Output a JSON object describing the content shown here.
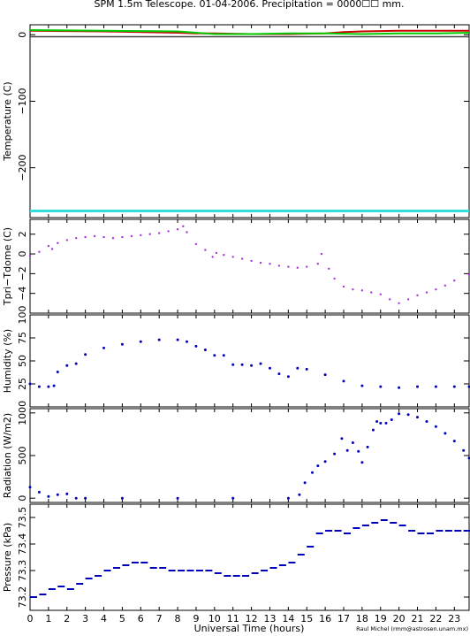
{
  "title": "SPM 1.5m Telescope. 01-04-2006. Precipitation = 0000☐☐ mm.",
  "xlabel": "Universal Time (hours)",
  "credit": "Raul Michel (rmm@astrosen.unam.mx)",
  "x_ticks": [
    "0",
    "1",
    "2",
    "3",
    "4",
    "5",
    "6",
    "7",
    "8",
    "9",
    "10",
    "11",
    "12",
    "13",
    "14",
    "15",
    "16",
    "17",
    "18",
    "19",
    "20",
    "21",
    "22",
    "23"
  ],
  "colors": {
    "temp_red": "#cc0000",
    "temp_green": "#00cc00",
    "temp_dark": "#444444",
    "temp_cyan": "#33dddd",
    "tpri": "#aa33dd",
    "blue": "#0000bb"
  },
  "chart_data": [
    {
      "type": "line",
      "ylabel": "Temperature (C)",
      "y_ticks": [
        "0",
        "−100",
        "−200"
      ],
      "ylim": [
        -275,
        15
      ],
      "series": [
        {
          "x": [
            0,
            2,
            4,
            6,
            8,
            9,
            10,
            12,
            14,
            16,
            17,
            18,
            20,
            22,
            23.8
          ],
          "y": [
            6,
            5.5,
            5,
            4,
            3,
            2,
            2,
            1,
            1,
            2,
            4,
            5,
            6,
            6,
            6
          ]
        },
        {
          "x": [
            0,
            2,
            4,
            6,
            8,
            9,
            10,
            12,
            14,
            16,
            18,
            20,
            22,
            23.8
          ],
          "y": [
            7,
            6.5,
            6,
            5.5,
            5,
            3,
            1,
            1,
            2,
            2,
            1,
            2,
            2,
            3
          ]
        },
        {
          "x": [
            0,
            23.8
          ],
          "y": [
            -3,
            -3
          ]
        },
        {
          "x": [
            0,
            23.8
          ],
          "y": [
            -265,
            -265
          ]
        }
      ]
    },
    {
      "type": "scatter",
      "ylabel": "Tpri−Tdome (C)",
      "y_ticks": [
        "2",
        "0",
        "−2",
        "−4"
      ],
      "ylim": [
        -6,
        3.5
      ],
      "series": [
        {
          "x": [
            0,
            0.5,
            1,
            1.2,
            1.5,
            2,
            2.5,
            3,
            3.5,
            4,
            4.5,
            5,
            5.5,
            6,
            6.5,
            7,
            7.5,
            8,
            8.3,
            8.5,
            9,
            9.5,
            9.9,
            10.1,
            10.5,
            11,
            11.5,
            12,
            12.5,
            13,
            13.5,
            14,
            14.5,
            15,
            15.6,
            15.8,
            16.2,
            16.5,
            17,
            17.5,
            18,
            18.5,
            19,
            19.5,
            20,
            20.5,
            21,
            21.5,
            22,
            22.5,
            23,
            23.8
          ],
          "y": [
            -0.2,
            0.2,
            0.8,
            0.5,
            1.1,
            1.4,
            1.6,
            1.7,
            1.8,
            1.7,
            1.6,
            1.7,
            1.8,
            1.9,
            2.0,
            2.1,
            2.3,
            2.5,
            2.8,
            2.2,
            1.0,
            0.4,
            -0.3,
            0.1,
            -0.1,
            -0.3,
            -0.5,
            -0.7,
            -0.9,
            -1.0,
            -1.2,
            -1.3,
            -1.4,
            -1.3,
            -1.0,
            0.0,
            -1.5,
            -2.5,
            -3.3,
            -3.6,
            -3.7,
            -3.9,
            -4.1,
            -4.6,
            -5.0,
            -4.6,
            -4.2,
            -3.9,
            -3.6,
            -3.2,
            -2.7,
            -2.1
          ]
        }
      ]
    },
    {
      "type": "scatter",
      "ylabel": "Humidity (%)",
      "y_ticks": [
        "25",
        "50",
        "75",
        "100"
      ],
      "ylim": [
        0,
        100
      ],
      "series": [
        {
          "x": [
            0,
            0.5,
            1.0,
            1.3,
            1.5,
            2.0,
            2.5,
            3.0,
            4.0,
            5.0,
            6.0,
            7.0,
            8.0,
            8.5,
            9.0,
            9.5,
            10.0,
            10.5,
            11.0,
            11.5,
            12.0,
            12.5,
            13.0,
            13.5,
            14.0,
            14.5,
            15.0,
            16.0,
            17.0,
            18.0,
            19.0,
            20.0,
            21.0,
            22.0,
            23.0,
            23.8
          ],
          "y": [
            25,
            22,
            22,
            23,
            38,
            45,
            47,
            57,
            64,
            68,
            71,
            73,
            73,
            71,
            66,
            62,
            56,
            56,
            46,
            46,
            45,
            47,
            42,
            36,
            33,
            42,
            41,
            35,
            28,
            23,
            22,
            21,
            22,
            22,
            22,
            22
          ]
        }
      ]
    },
    {
      "type": "scatter",
      "ylabel": "Radiation (W/m2)",
      "y_ticks": [
        "0",
        "500",
        "1000"
      ],
      "ylim": [
        -50,
        1050
      ],
      "series": [
        {
          "x": [
            0,
            0.5,
            1.0,
            1.5,
            2.0,
            2.5,
            3.0,
            5.0,
            8.0,
            11.0,
            14.0,
            14.6,
            14.9,
            15.3,
            15.6,
            16.0,
            16.5,
            16.9,
            17.2,
            17.5,
            17.8,
            18.0,
            18.3,
            18.6,
            18.8,
            19.0,
            19.3,
            19.6,
            20.0,
            20.5,
            21.0,
            21.5,
            22.0,
            22.5,
            23.0,
            23.5,
            23.8
          ],
          "y": [
            130,
            70,
            20,
            40,
            50,
            0,
            0,
            0,
            0,
            0,
            0,
            40,
            180,
            300,
            380,
            430,
            520,
            700,
            560,
            650,
            550,
            420,
            600,
            800,
            900,
            880,
            880,
            920,
            990,
            980,
            950,
            900,
            840,
            760,
            670,
            560,
            470
          ]
        }
      ]
    },
    {
      "type": "scatter",
      "ylabel": "Pressure (kPa)",
      "y_ticks": [
        "73.2",
        "73.3",
        "73.4",
        "73.5"
      ],
      "ylim": [
        73.15,
        73.55
      ],
      "series": [
        {
          "x": [
            0,
            0.5,
            1.0,
            1.5,
            2.0,
            2.5,
            3.0,
            3.5,
            4.0,
            4.5,
            5.0,
            5.5,
            6.0,
            6.5,
            7.0,
            7.5,
            8.0,
            8.5,
            9.0,
            9.5,
            10.0,
            10.5,
            11.0,
            11.5,
            12.0,
            12.5,
            13.0,
            13.5,
            14.0,
            14.5,
            15.0,
            15.5,
            16.0,
            16.5,
            17.0,
            17.5,
            18.0,
            18.5,
            19.0,
            19.5,
            20.0,
            20.5,
            21.0,
            21.5,
            22.0,
            22.5,
            23.0,
            23.5,
            23.8
          ],
          "y": [
            73.2,
            73.21,
            73.23,
            73.24,
            73.23,
            73.25,
            73.27,
            73.28,
            73.3,
            73.31,
            73.32,
            73.33,
            73.33,
            73.31,
            73.31,
            73.3,
            73.3,
            73.3,
            73.3,
            73.3,
            73.29,
            73.28,
            73.28,
            73.28,
            73.29,
            73.3,
            73.31,
            73.32,
            73.33,
            73.36,
            73.39,
            73.44,
            73.45,
            73.45,
            73.44,
            73.46,
            73.47,
            73.48,
            73.49,
            73.48,
            73.47,
            73.45,
            73.44,
            73.44,
            73.45,
            73.45,
            73.45,
            73.45,
            73.45
          ]
        }
      ]
    }
  ]
}
